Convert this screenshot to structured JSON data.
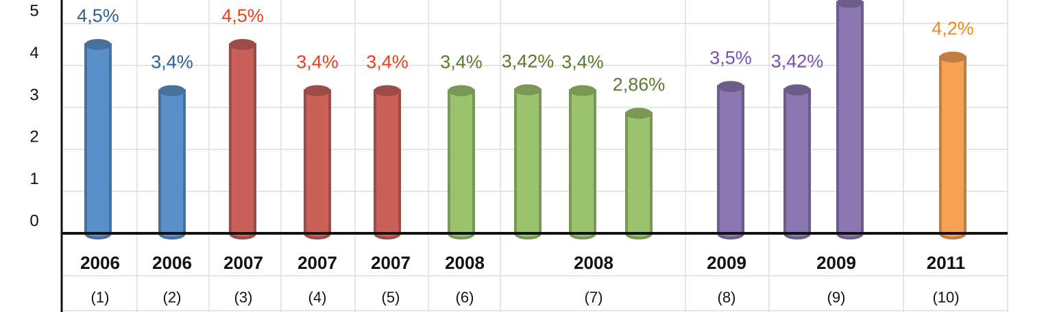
{
  "chart_data": {
    "type": "bar",
    "ylim": [
      0,
      5.56
    ],
    "yticks": [
      0,
      1,
      2,
      3,
      4,
      5
    ],
    "grid": true,
    "groups": [
      {
        "year": "2006",
        "number": "(1)",
        "color": "#5b8fc9",
        "label_color": "#2f5f95",
        "values": [
          4.5
        ],
        "value_labels": [
          "4,5%"
        ]
      },
      {
        "year": "2006",
        "number": "(2)",
        "color": "#5b8fc9",
        "label_color": "#2f5f95",
        "values": [
          3.4
        ],
        "value_labels": [
          "3,4%"
        ]
      },
      {
        "year": "2007",
        "number": "(3)",
        "color": "#c9605a",
        "label_color": "#e8421c",
        "values": [
          4.5
        ],
        "value_labels": [
          "4,5%"
        ]
      },
      {
        "year": "2007",
        "number": "(4)",
        "color": "#c9605a",
        "label_color": "#e8421c",
        "values": [
          3.4
        ],
        "value_labels": [
          "3,4%"
        ]
      },
      {
        "year": "2007",
        "number": "(5)",
        "color": "#c9605a",
        "label_color": "#e8421c",
        "values": [
          3.4
        ],
        "value_labels": [
          "3,4%"
        ]
      },
      {
        "year": "2008",
        "number": "(6)",
        "color": "#9bc36e",
        "label_color": "#5a7a2e",
        "values": [
          3.4
        ],
        "value_labels": [
          "3,4%"
        ]
      },
      {
        "year": "2008",
        "number": "(7)",
        "color": "#9bc36e",
        "label_color": "#5a7a2e",
        "values": [
          3.42,
          3.4,
          2.86
        ],
        "value_labels": [
          "3,42%",
          "3,4%",
          "2,86%"
        ]
      },
      {
        "year": "2009",
        "number": "(8)",
        "color": "#8a76b0",
        "label_color": "#7a4fb5",
        "values": [
          3.5
        ],
        "value_labels": [
          "3,5%"
        ]
      },
      {
        "year": "2009",
        "number": "(9)",
        "color": "#8a76b0",
        "label_color": "#7a4fb5",
        "values": [
          3.42,
          5.5
        ],
        "value_labels": [
          "3,42%",
          null
        ]
      },
      {
        "year": "2011",
        "number": "(10)",
        "color": "#f8a154",
        "label_color": "#f08a20",
        "values": [
          4.2
        ],
        "value_labels": [
          "4,2%"
        ]
      }
    ]
  }
}
